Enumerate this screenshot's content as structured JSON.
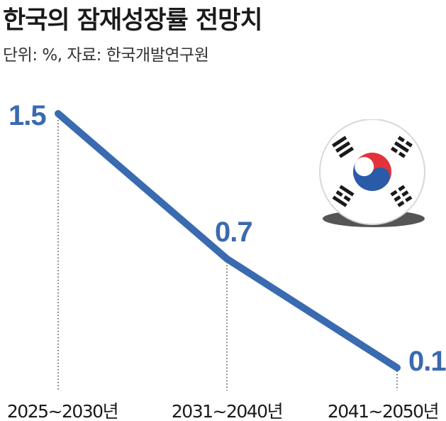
{
  "header": {
    "title": "한국의 잠재성장률 전망치",
    "subtitle": "단위: %, 자료: 한국개발연구원"
  },
  "chart_data": {
    "type": "line",
    "title": "한국의 잠재성장률 전망치",
    "subtitle": "단위: %, 자료: 한국개발연구원",
    "categories": [
      "2025~2030년",
      "2031~2040년",
      "2041~2050년"
    ],
    "series": [
      {
        "values": [
          1.5,
          0.7,
          0.1
        ]
      }
    ],
    "data_labels": [
      "1.5",
      "0.7",
      "0.1"
    ],
    "ylim": [
      0,
      1.6
    ],
    "grid": false,
    "line_color": "#3a6ab0",
    "label_color": "#3a6ab0",
    "dotted_guides": true
  },
  "decoration": {
    "icon": "korean-flag-icon",
    "colors": {
      "red": "#e2323c",
      "blue": "#2a5aa8",
      "trigram": "#1a1a1a",
      "shadow": "#555555"
    }
  }
}
